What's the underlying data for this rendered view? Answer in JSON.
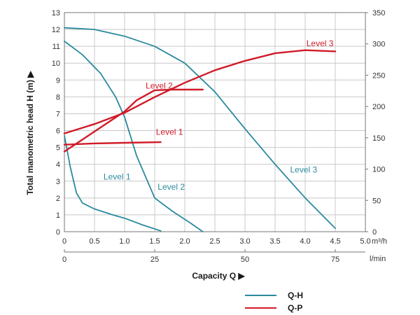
{
  "chart_data": {
    "type": "line",
    "title": "",
    "ylabel": "Total manometric head H (m) ▶",
    "xlabel": "Capacity Q ▶",
    "x_unit_primary": "m³/h",
    "x_unit_secondary": "l/min",
    "xlim": [
      0,
      5
    ],
    "ylim": [
      0,
      13
    ],
    "y2lim": [
      0,
      350
    ],
    "x_ticks": [
      "0",
      "0.5",
      "1.0",
      "1.5",
      "2.0",
      "2.5",
      "3.0",
      "3.5",
      "4.0",
      "4.5",
      "5.0"
    ],
    "x2_ticks": [
      {
        "value": 0,
        "label": "0"
      },
      {
        "value": 25,
        "label": "25"
      },
      {
        "value": 50,
        "label": "50"
      },
      {
        "value": 75,
        "label": "75"
      }
    ],
    "y_ticks": [
      "0",
      "1",
      "2",
      "3",
      "4",
      "5",
      "6",
      "7",
      "8",
      "9",
      "10",
      "11",
      "12",
      "13"
    ],
    "y2_ticks": [
      "0",
      "50",
      "100",
      "150",
      "200",
      "250",
      "300",
      "350"
    ],
    "grid": true,
    "legend": "bottom-right",
    "series": [
      {
        "name": "Q-H",
        "axis": "left",
        "color": "#2a8a9e",
        "label": "Level 1",
        "x": [
          0,
          0.1,
          0.2,
          0.3,
          0.5,
          0.8,
          1.0,
          1.3,
          1.6
        ],
        "y": [
          5.7,
          3.8,
          2.3,
          1.7,
          1.35,
          1.0,
          0.8,
          0.4,
          0.05
        ]
      },
      {
        "name": "Q-H",
        "axis": "left",
        "color": "#2a8a9e",
        "label": "Level 2",
        "x": [
          0,
          0.3,
          0.6,
          0.85,
          1.0,
          1.2,
          1.5,
          1.8,
          2.1,
          2.3
        ],
        "y": [
          11.3,
          10.5,
          9.4,
          8.0,
          6.8,
          4.5,
          2.0,
          1.2,
          0.5,
          0.0
        ],
        "label_anchor": [
          1.55,
          2.5
        ]
      },
      {
        "name": "Q-H",
        "axis": "left",
        "color": "#2a8a9e",
        "label": "Level 3",
        "x": [
          0,
          0.5,
          1.0,
          1.5,
          2.0,
          2.5,
          3.0,
          3.5,
          4.0,
          4.5
        ],
        "y": [
          12.1,
          12.0,
          11.6,
          11.0,
          10.0,
          8.3,
          6.1,
          4.0,
          2.0,
          0.2
        ],
        "label_anchor": [
          3.75,
          3.5
        ]
      },
      {
        "name": "Q-P",
        "axis": "right",
        "color": "#d01b28",
        "label": "Level 1",
        "x": [
          0,
          0.5,
          1.0,
          1.6
        ],
        "y": [
          139,
          141,
          142,
          143
        ],
        "label_anchor": [
          1.52,
          5.75
        ]
      },
      {
        "name": "Q-P",
        "axis": "right",
        "color": "#d01b28",
        "label": "Level 2",
        "x": [
          0,
          0.5,
          1.0,
          1.2,
          1.5,
          1.8,
          2.3
        ],
        "y": [
          128,
          160,
          192,
          210,
          226,
          227,
          227
        ],
        "label_anchor": [
          1.35,
          8.5
        ]
      },
      {
        "name": "Q-P",
        "axis": "right",
        "color": "#d01b28",
        "label": "Level 3",
        "x": [
          0,
          0.5,
          1.0,
          1.5,
          2.0,
          2.5,
          3.0,
          3.5,
          4.0,
          4.5
        ],
        "y": [
          157,
          172,
          190,
          215,
          238,
          258,
          273,
          285,
          290,
          288
        ],
        "label_anchor": [
          4.02,
          11.0
        ]
      }
    ]
  },
  "legend": {
    "qh_label": "Q-H",
    "qp_label": "Q-P",
    "qh_color": "#2a8a9e",
    "qp_color": "#d01b28"
  }
}
